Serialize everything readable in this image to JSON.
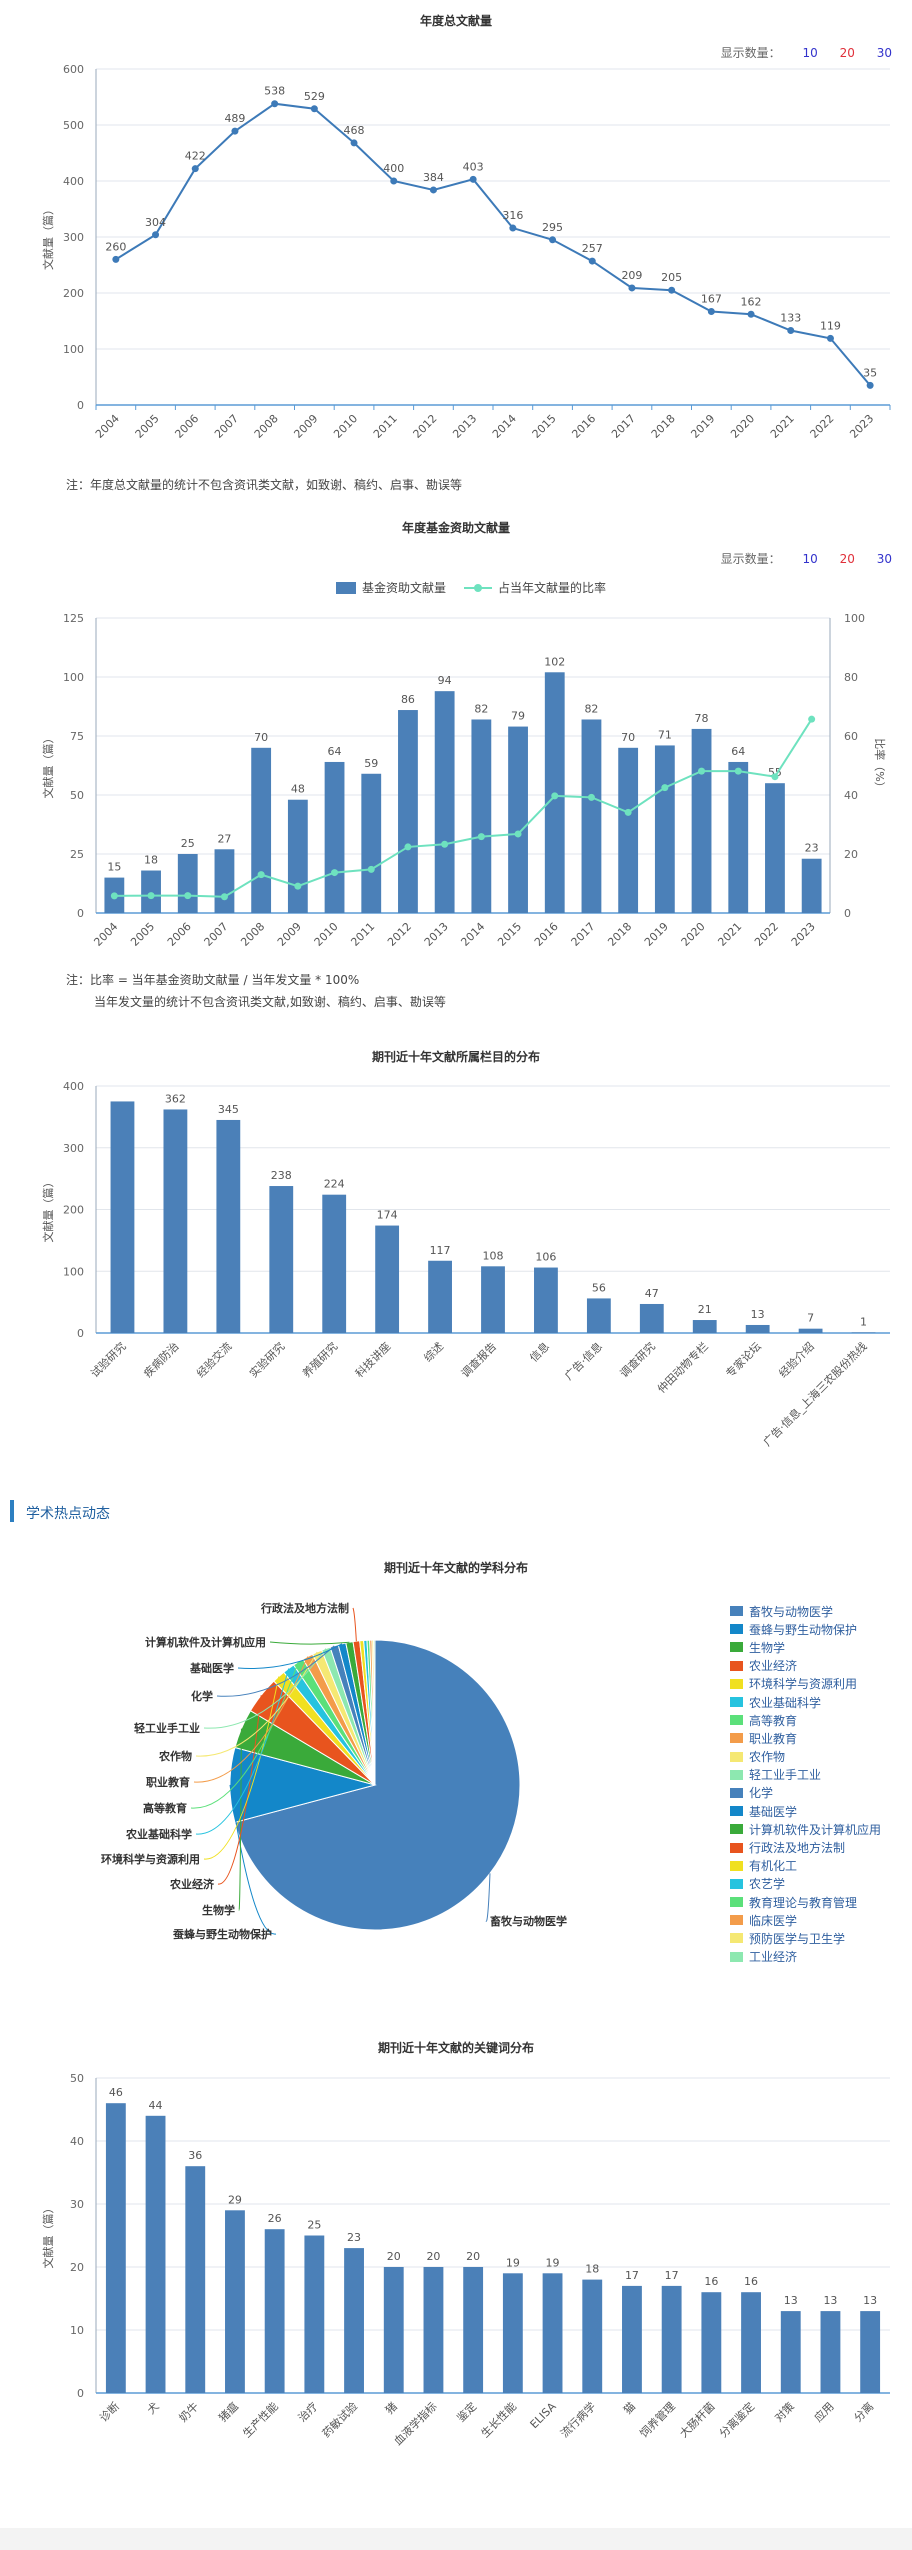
{
  "toolbar": {
    "label": "显示数量：",
    "options": [
      "10",
      "20",
      "30"
    ]
  },
  "chart1": {
    "title": "年度总文献量",
    "note": "注：年度总文献量的统计不包含资讯类文献，如致谢、稿约、启事、勘误等"
  },
  "chart2": {
    "title": "年度基金资助文献量",
    "note_line1": "注：比率 = 当年基金资助文献量 / 当年发文量 * 100%",
    "note_line2": "当年发文量的统计不包含资讯类文献,如致谢、稿约、启事、勘误等"
  },
  "chart3": {
    "title": "期刊近十年文献所属栏目的分布"
  },
  "hot": {
    "title": "学术热点动态"
  },
  "chart4": {
    "title": "期刊近十年文献的学科分布"
  },
  "chart5": {
    "title": "期刊近十年文献的关键词分布"
  },
  "chart_data": [
    {
      "type": "line",
      "title": "年度总文献量",
      "ylabel": "文献量（篇）",
      "x": [
        "2004",
        "2005",
        "2006",
        "2007",
        "2008",
        "2009",
        "2010",
        "2011",
        "2012",
        "2013",
        "2014",
        "2015",
        "2016",
        "2017",
        "2018",
        "2019",
        "2020",
        "2021",
        "2022",
        "2023"
      ],
      "values": [
        260,
        304,
        422,
        489,
        538,
        529,
        468,
        400,
        384,
        403,
        316,
        295,
        257,
        209,
        205,
        167,
        162,
        133,
        119,
        35
      ],
      "ylim": [
        0,
        600
      ],
      "yticks": [
        0,
        100,
        200,
        300,
        400,
        500,
        600
      ],
      "color": "#3d7ab8"
    },
    {
      "type": "bar",
      "title": "年度基金资助文献量",
      "ylabel": "文献量（篇）",
      "y2label": "比率（%）",
      "x": [
        "2004",
        "2005",
        "2006",
        "2007",
        "2008",
        "2009",
        "2010",
        "2011",
        "2012",
        "2013",
        "2014",
        "2015",
        "2016",
        "2017",
        "2018",
        "2019",
        "2020",
        "2021",
        "2022",
        "2023"
      ],
      "series": [
        {
          "name": "基金资助文献量",
          "values": [
            15,
            18,
            25,
            27,
            70,
            48,
            64,
            59,
            86,
            94,
            82,
            79,
            102,
            82,
            70,
            71,
            78,
            64,
            55,
            23
          ],
          "color": "#4b80b8"
        },
        {
          "name": "占当年文献量的比率",
          "values": [
            5.8,
            5.9,
            5.9,
            5.5,
            13.0,
            9.1,
            13.7,
            14.8,
            22.4,
            23.3,
            25.9,
            26.8,
            39.7,
            39.2,
            34.1,
            42.5,
            48.1,
            48.1,
            46.2,
            65.7
          ],
          "color": "#6ee2bf"
        }
      ],
      "ylim": [
        0,
        125
      ],
      "yticks": [
        0,
        25,
        50,
        75,
        100,
        125
      ],
      "y2lim": [
        0,
        100
      ],
      "y2ticks": [
        0,
        20,
        40,
        60,
        80,
        100
      ]
    },
    {
      "type": "bar",
      "title": "期刊近十年文献所属栏目的分布",
      "ylabel": "文献量（篇）",
      "categories": [
        "试验研究",
        "疾病防治",
        "经验交流",
        "实验研究",
        "养殖研究",
        "科技讲座",
        "综述",
        "调查报告",
        "信息",
        "广告·信息",
        "调查研究",
        "仲田动物专栏",
        "专家论坛",
        "经验介绍",
        "广告·信息_上海三农股份热线"
      ],
      "values": [
        375,
        362,
        345,
        238,
        224,
        174,
        117,
        108,
        106,
        56,
        47,
        21,
        13,
        7,
        1
      ],
      "labels": [
        "",
        "362",
        "345",
        "238",
        "224",
        "174",
        "117",
        "108",
        "106",
        "56",
        "47",
        "21",
        "13",
        "7",
        "1"
      ],
      "ylim": [
        0,
        400
      ],
      "yticks": [
        0,
        100,
        200,
        300,
        400
      ],
      "color": "#4b80b8"
    },
    {
      "type": "pie",
      "title": "期刊近十年文献的学科分布",
      "categories": [
        "畜牧与动物医学",
        "蚕蜂与野生动物保护",
        "生物学",
        "农业经济",
        "环境科学与资源利用",
        "农业基础科学",
        "高等教育",
        "职业教育",
        "农作物",
        "轻工业手工业",
        "化学",
        "基础医学",
        "计算机软件及计算机应用",
        "行政法及地方法制",
        "有机化工",
        "农艺学",
        "教育理论与教育管理",
        "临床医学",
        "预防医学与卫生学",
        "工业经济"
      ],
      "values": [
        2900,
        340,
        180,
        170,
        60,
        55,
        50,
        48,
        45,
        40,
        38,
        35,
        33,
        30,
        18,
        15,
        12,
        10,
        8,
        6
      ],
      "colors": [
        "#4681bb",
        "#1387c9",
        "#3aaa3a",
        "#e8541e",
        "#f0e020",
        "#26c3df",
        "#5be07a",
        "#f39c4a",
        "#f5e873",
        "#8de8b0",
        "#4681bb",
        "#1387c9",
        "#3aaa3a",
        "#e8541e",
        "#f0e020",
        "#26c3df",
        "#5be07a",
        "#f39c4a",
        "#f5e873",
        "#8de8b0"
      ],
      "pie_labels": [
        "畜牧与动物医学",
        "蚕蜂与野生动物保护",
        "生物学",
        "农业经济",
        "环境科学与资源利用",
        "农业基础科学",
        "高等教育",
        "职业教育",
        "农作物",
        "轻工业手工业",
        "化学",
        "基础医学",
        "计算机软件及计算机应用",
        "行政法及地方法制"
      ]
    },
    {
      "type": "bar",
      "title": "期刊近十年文献的关键词分布",
      "ylabel": "文献量（篇）",
      "categories": [
        "诊断",
        "犬",
        "奶牛",
        "猪瘟",
        "生产性能",
        "治疗",
        "药敏试验",
        "猪",
        "血液学指标",
        "鉴定",
        "生长性能",
        "ELISA",
        "流行病学",
        "猫",
        "饲养管理",
        "大肠杆菌",
        "分离鉴定",
        "对策",
        "应用",
        "分离"
      ],
      "values": [
        46,
        44,
        36,
        29,
        26,
        25,
        23,
        20,
        20,
        20,
        19,
        19,
        18,
        17,
        17,
        16,
        16,
        13,
        13,
        13
      ],
      "ylim": [
        0,
        50
      ],
      "yticks": [
        0,
        10,
        20,
        30,
        40,
        50
      ],
      "color": "#4b80b8"
    }
  ]
}
